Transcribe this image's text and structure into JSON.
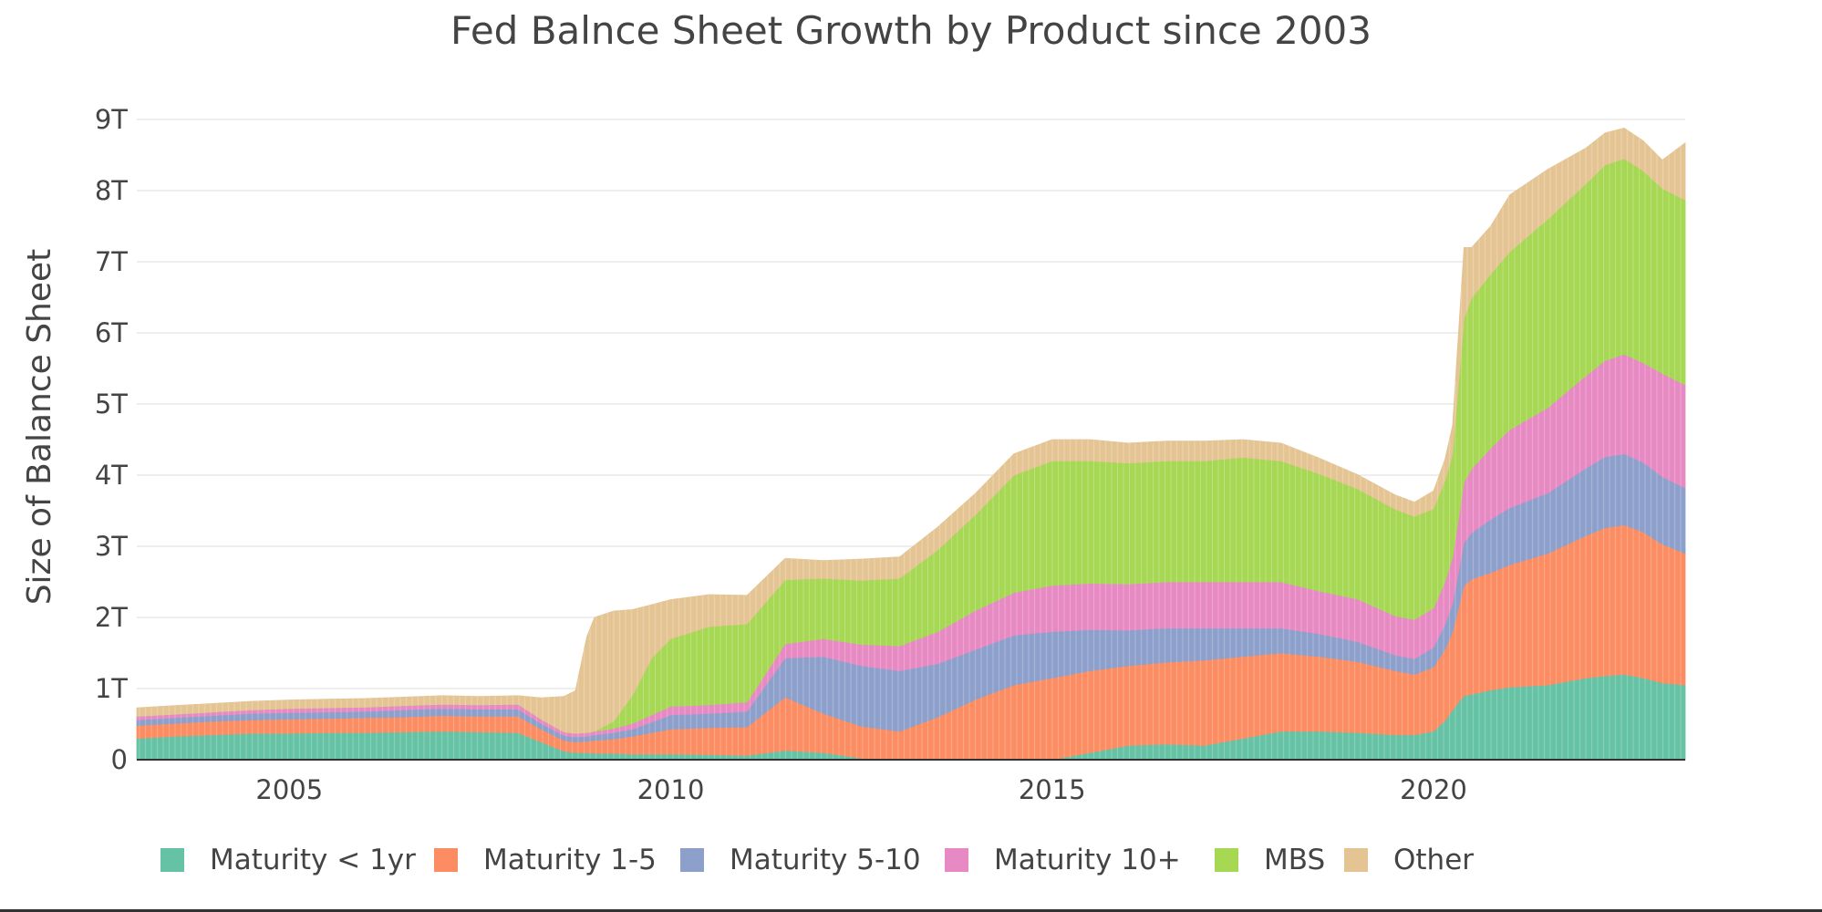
{
  "chart_data": {
    "type": "area",
    "stacked": true,
    "title": "Fed Balnce Sheet Growth by Product since 2003",
    "xlabel": "",
    "ylabel": "Size of Balance Sheet",
    "xlim": [
      2003.0,
      2023.3
    ],
    "ylim": [
      0,
      9
    ],
    "y_unit": "T",
    "x_ticks": [
      {
        "value": 2005,
        "label": "2005"
      },
      {
        "value": 2010,
        "label": "2010"
      },
      {
        "value": 2015,
        "label": "2015"
      },
      {
        "value": 2020,
        "label": "2020"
      }
    ],
    "y_ticks": [
      {
        "value": 0,
        "label": "0"
      },
      {
        "value": 1,
        "label": "1T"
      },
      {
        "value": 2,
        "label": "2T"
      },
      {
        "value": 3,
        "label": "3T"
      },
      {
        "value": 4,
        "label": "4T"
      },
      {
        "value": 5,
        "label": "5T"
      },
      {
        "value": 6,
        "label": "6T"
      },
      {
        "value": 7,
        "label": "7T"
      },
      {
        "value": 8,
        "label": "8T"
      },
      {
        "value": 9,
        "label": "9T"
      }
    ],
    "grid": true,
    "legend_position": "bottom",
    "x": [
      2003.0,
      2003.5,
      2004.0,
      2004.5,
      2005.0,
      2005.5,
      2006.0,
      2006.5,
      2007.0,
      2007.5,
      2008.0,
      2008.3,
      2008.6,
      2008.75,
      2008.9,
      2009.0,
      2009.25,
      2009.5,
      2009.75,
      2010.0,
      2010.5,
      2011.0,
      2011.5,
      2012.0,
      2012.5,
      2013.0,
      2013.5,
      2014.0,
      2014.5,
      2015.0,
      2015.5,
      2016.0,
      2016.5,
      2017.0,
      2017.5,
      2018.0,
      2018.5,
      2019.0,
      2019.5,
      2019.75,
      2020.0,
      2020.15,
      2020.25,
      2020.4,
      2020.5,
      2020.75,
      2021.0,
      2021.5,
      2022.0,
      2022.25,
      2022.5,
      2022.75,
      2023.0,
      2023.3
    ],
    "series": [
      {
        "name": "Maturity < 1yr",
        "color": "#66c2a5",
        "values": [
          0.3,
          0.33,
          0.35,
          0.37,
          0.37,
          0.38,
          0.38,
          0.39,
          0.4,
          0.39,
          0.38,
          0.25,
          0.12,
          0.1,
          0.1,
          0.09,
          0.09,
          0.08,
          0.08,
          0.08,
          0.07,
          0.06,
          0.13,
          0.1,
          0.02,
          0.0,
          0.0,
          0.0,
          0.0,
          0.0,
          0.1,
          0.2,
          0.22,
          0.2,
          0.3,
          0.4,
          0.4,
          0.38,
          0.35,
          0.35,
          0.4,
          0.55,
          0.7,
          0.9,
          0.92,
          0.98,
          1.02,
          1.05,
          1.15,
          1.18,
          1.2,
          1.15,
          1.08,
          1.05
        ]
      },
      {
        "name": "Maturity 1-5",
        "color": "#fc8d62",
        "values": [
          0.18,
          0.18,
          0.19,
          0.19,
          0.2,
          0.2,
          0.21,
          0.21,
          0.22,
          0.22,
          0.23,
          0.18,
          0.15,
          0.15,
          0.16,
          0.18,
          0.2,
          0.25,
          0.3,
          0.35,
          0.38,
          0.4,
          0.75,
          0.55,
          0.45,
          0.4,
          0.6,
          0.85,
          1.05,
          1.15,
          1.15,
          1.12,
          1.15,
          1.2,
          1.15,
          1.1,
          1.05,
          1.0,
          0.9,
          0.85,
          0.9,
          1.0,
          1.1,
          1.55,
          1.62,
          1.65,
          1.72,
          1.85,
          2.0,
          2.08,
          2.1,
          2.05,
          1.95,
          1.85
        ]
      },
      {
        "name": "Maturity 5-10",
        "color": "#8da0cb",
        "values": [
          0.08,
          0.08,
          0.08,
          0.09,
          0.09,
          0.09,
          0.09,
          0.1,
          0.1,
          0.1,
          0.1,
          0.08,
          0.07,
          0.07,
          0.07,
          0.08,
          0.09,
          0.1,
          0.15,
          0.2,
          0.2,
          0.22,
          0.55,
          0.8,
          0.85,
          0.85,
          0.75,
          0.7,
          0.7,
          0.65,
          0.58,
          0.5,
          0.48,
          0.45,
          0.4,
          0.35,
          0.32,
          0.28,
          0.22,
          0.22,
          0.28,
          0.35,
          0.4,
          0.6,
          0.65,
          0.75,
          0.8,
          0.85,
          0.95,
          1.0,
          1.0,
          0.98,
          0.95,
          0.92
        ]
      },
      {
        "name": "Maturity 10+",
        "color": "#e78ac3",
        "values": [
          0.05,
          0.05,
          0.05,
          0.05,
          0.06,
          0.06,
          0.06,
          0.06,
          0.06,
          0.06,
          0.07,
          0.06,
          0.05,
          0.05,
          0.05,
          0.05,
          0.06,
          0.08,
          0.1,
          0.12,
          0.12,
          0.13,
          0.2,
          0.25,
          0.3,
          0.35,
          0.45,
          0.55,
          0.6,
          0.65,
          0.65,
          0.65,
          0.65,
          0.65,
          0.65,
          0.65,
          0.6,
          0.6,
          0.55,
          0.55,
          0.55,
          0.6,
          0.65,
          0.85,
          0.9,
          1.0,
          1.1,
          1.2,
          1.3,
          1.35,
          1.4,
          1.4,
          1.45,
          1.45
        ]
      },
      {
        "name": "MBS",
        "color": "#a6d854",
        "values": [
          0.0,
          0.0,
          0.0,
          0.0,
          0.0,
          0.0,
          0.0,
          0.0,
          0.0,
          0.0,
          0.0,
          0.0,
          0.0,
          0.0,
          0.0,
          0.0,
          0.1,
          0.4,
          0.8,
          0.95,
          1.1,
          1.1,
          0.9,
          0.85,
          0.9,
          0.95,
          1.15,
          1.35,
          1.65,
          1.75,
          1.72,
          1.7,
          1.7,
          1.7,
          1.75,
          1.7,
          1.65,
          1.55,
          1.5,
          1.45,
          1.4,
          1.42,
          1.45,
          2.3,
          2.4,
          2.45,
          2.5,
          2.65,
          2.7,
          2.75,
          2.75,
          2.7,
          2.6,
          2.6
        ]
      },
      {
        "name": "Other",
        "color": "#e5c494",
        "values": [
          0.12,
          0.12,
          0.12,
          0.12,
          0.12,
          0.12,
          0.12,
          0.12,
          0.12,
          0.12,
          0.12,
          0.3,
          0.5,
          0.6,
          1.35,
          1.6,
          1.55,
          1.2,
          0.75,
          0.55,
          0.45,
          0.4,
          0.3,
          0.25,
          0.3,
          0.3,
          0.32,
          0.3,
          0.3,
          0.3,
          0.3,
          0.28,
          0.28,
          0.28,
          0.25,
          0.25,
          0.22,
          0.2,
          0.2,
          0.2,
          0.25,
          0.3,
          0.4,
          1.0,
          0.71,
          0.67,
          0.8,
          0.7,
          0.5,
          0.45,
          0.43,
          0.42,
          0.4,
          0.8
        ]
      }
    ]
  }
}
